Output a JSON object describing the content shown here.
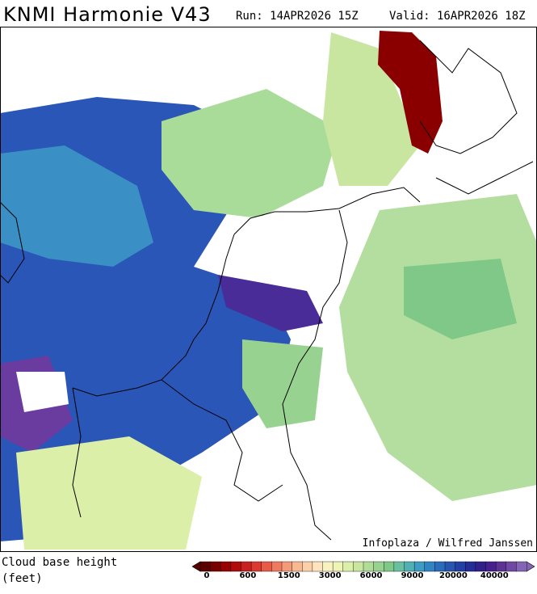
{
  "header": {
    "title": "KNMI Harmonie V43",
    "run": "Run: 14APR2026 15Z",
    "valid": "Valid: 16APR2026 18Z"
  },
  "map": {
    "credit": "Infoplaza / Wilfred Janssen"
  },
  "legend": {
    "title_line1": "Cloud base height",
    "title_line2": "(feet)",
    "colors": [
      "#5a0000",
      "#7a0000",
      "#960000",
      "#b00a0a",
      "#c82020",
      "#dc3a30",
      "#e85a48",
      "#f07a60",
      "#f49a78",
      "#f8b890",
      "#fbd0a8",
      "#fde4bc",
      "#f8f2c0",
      "#eef4b4",
      "#dcefa8",
      "#c8e6a0",
      "#b0dc98",
      "#98d290",
      "#80c888",
      "#68c0a0",
      "#50b0b4",
      "#3c9cc4",
      "#3084c4",
      "#2a6cbc",
      "#2656b0",
      "#2240a4",
      "#242c98",
      "#30208c",
      "#46208c",
      "#5c3294",
      "#7048a4",
      "#8464b4"
    ],
    "ticks": [
      0,
      600,
      1500,
      3000,
      6000,
      9000,
      20000,
      40000
    ]
  }
}
